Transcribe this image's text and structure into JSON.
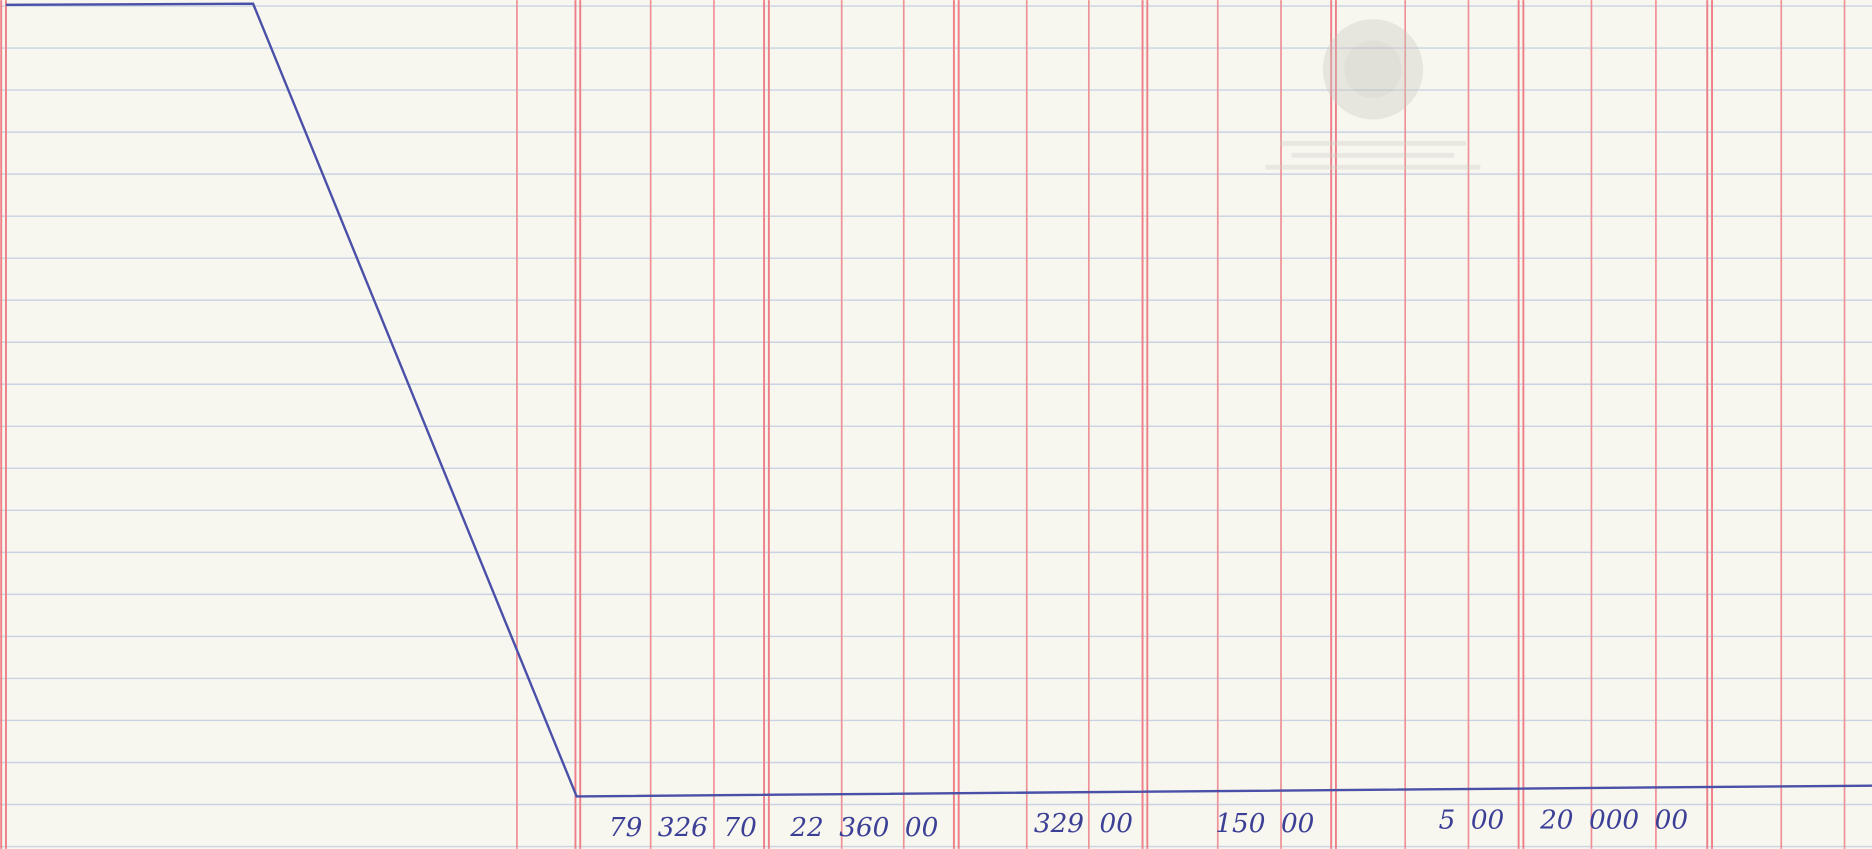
{
  "ledger": {
    "amounts": [
      "79 326 70",
      "22 360 00",
      "329 00",
      "150 00",
      "5 00",
      "20 000 00"
    ]
  }
}
